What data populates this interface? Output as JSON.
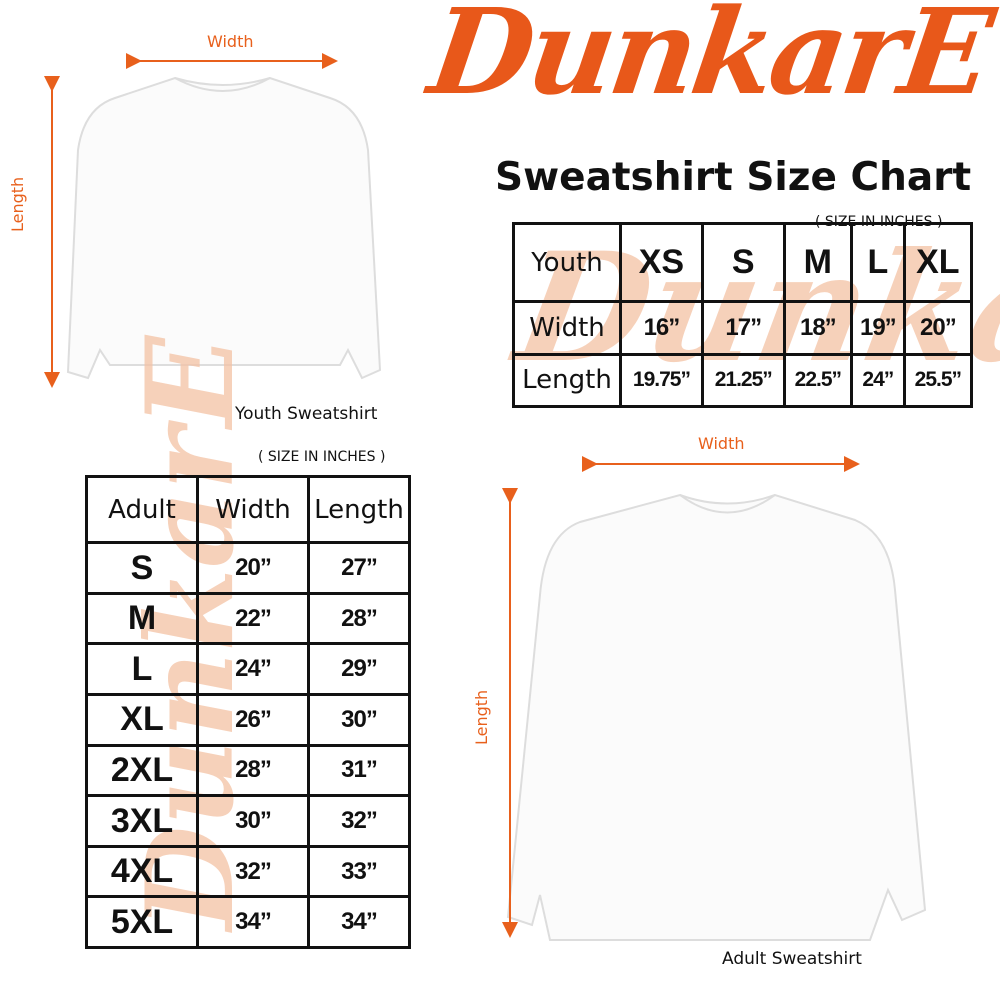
{
  "brand": {
    "logo_text": "DunkarE",
    "color": "#e8581a"
  },
  "title": "Sweatshirt Size Chart",
  "youth": {
    "unit_note": "( SIZE IN INCHES )",
    "header": "Youth",
    "sizes": [
      "XS",
      "S",
      "M",
      "L",
      "XL"
    ],
    "rows": [
      {
        "label": "Width",
        "values": [
          "16”",
          "17”",
          "18”",
          "19”",
          "20”"
        ]
      },
      {
        "label": "Length",
        "values": [
          "19.75”",
          "21.25”",
          "22.5”",
          "24”",
          "25.5”"
        ]
      }
    ],
    "caption": "Youth Sweatshirt",
    "width_label": "Width",
    "length_label": "Length"
  },
  "adult": {
    "unit_note": "( SIZE IN INCHES )",
    "headers": [
      "Adult",
      "Width",
      "Length"
    ],
    "rows": [
      {
        "size": "S",
        "width": "20”",
        "length": "27”"
      },
      {
        "size": "M",
        "width": "22”",
        "length": "28”"
      },
      {
        "size": "L",
        "width": "24”",
        "length": "29”"
      },
      {
        "size": "XL",
        "width": "26”",
        "length": "30”"
      },
      {
        "size": "2XL",
        "width": "28”",
        "length": "31”"
      },
      {
        "size": "3XL",
        "width": "30”",
        "length": "32”"
      },
      {
        "size": "4XL",
        "width": "32”",
        "length": "33”"
      },
      {
        "size": "5XL",
        "width": "34”",
        "length": "34”"
      }
    ],
    "caption": "Adult Sweatshirt",
    "width_label": "Width",
    "length_label": "Length"
  }
}
